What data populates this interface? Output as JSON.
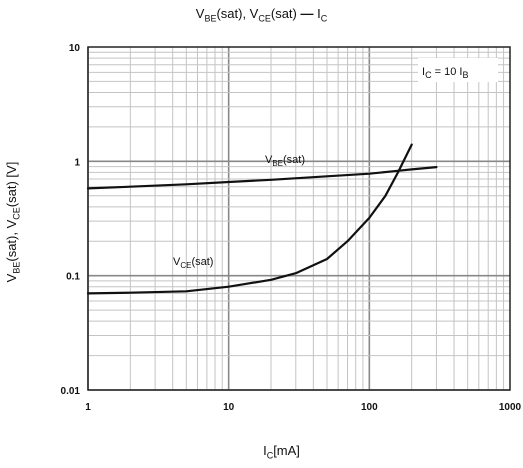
{
  "chart_data": {
    "type": "line",
    "title": "V_BE(sat), V_CE(sat) — I_C",
    "xlabel": "I_C[mA]",
    "ylabel": "V_BE(sat), V_CE(sat) [V]",
    "xscale": "log",
    "yscale": "log",
    "xlim": [
      1,
      1000
    ],
    "ylim": [
      0.01,
      10
    ],
    "xticks": [
      "1",
      "10",
      "100",
      "1000"
    ],
    "yticks": [
      "0.01",
      "0.1",
      "1",
      "10"
    ],
    "grid": true,
    "condition": "I_C = 10 I_B",
    "series": [
      {
        "name": "V_BE(sat)",
        "x": [
          1,
          2,
          5,
          10,
          20,
          50,
          100,
          150,
          200,
          300
        ],
        "y": [
          0.58,
          0.6,
          0.63,
          0.66,
          0.69,
          0.74,
          0.78,
          0.82,
          0.85,
          0.89
        ]
      },
      {
        "name": "V_CE(sat)",
        "x": [
          1,
          2,
          5,
          10,
          20,
          30,
          50,
          70,
          100,
          130,
          160,
          200
        ],
        "y": [
          0.07,
          0.071,
          0.073,
          0.08,
          0.092,
          0.105,
          0.14,
          0.2,
          0.32,
          0.5,
          0.8,
          1.4
        ]
      }
    ]
  }
}
